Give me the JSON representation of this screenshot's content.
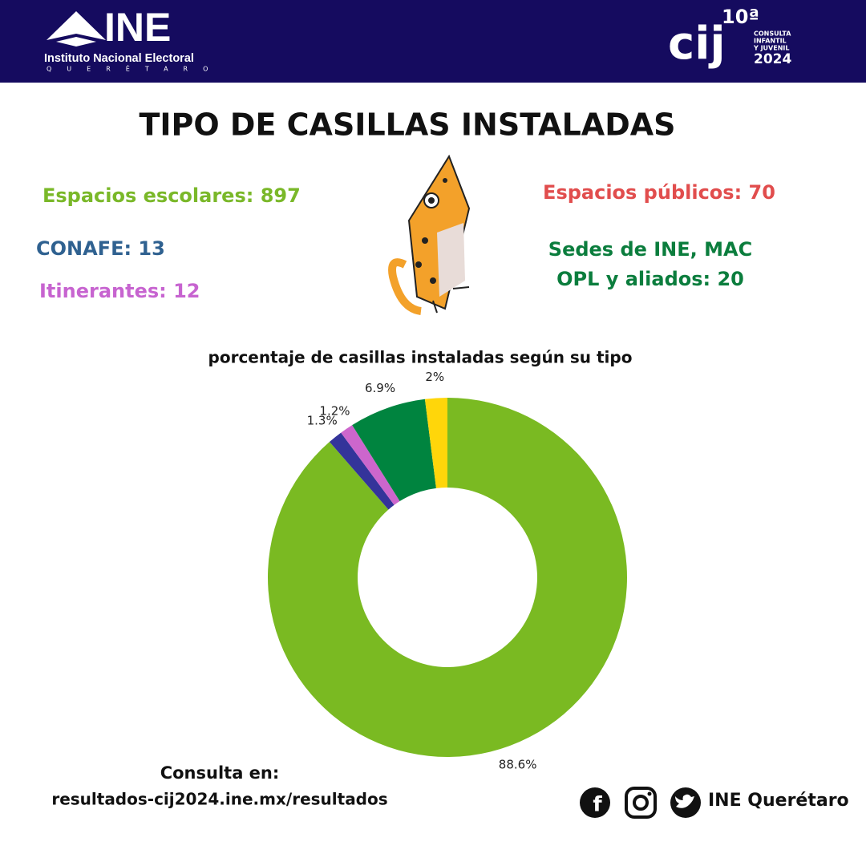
{
  "header": {
    "logo": "INE",
    "institute": "Instituto Nacional Electoral",
    "state": "QUERÉTARO",
    "cij_edition": "10ª",
    "cij": "cij",
    "cij_line1": "CONSULTA",
    "cij_line2": "INFANTIL",
    "cij_line3": "Y JUVENIL",
    "cij_year": "2024"
  },
  "title": "TIPO DE CASILLAS INSTALADAS",
  "stats": {
    "escolares": "Espacios  escolares: 897",
    "conafe": "CONAFE: 13",
    "itinerantes": "Itinerantes: 12",
    "publicos": "Espacios públicos: 70",
    "sedes_line1": "Sedes de INE, MAC",
    "sedes_line2": "OPL y aliados:  20"
  },
  "chart_data": {
    "type": "donut",
    "title": "porcentaje de casillas instaladas según su tipo",
    "values": [
      88.6,
      1.3,
      1.2,
      6.9,
      2
    ],
    "value_labels": [
      "88.6%",
      "1.3%",
      "1.2%",
      "6.9%",
      "2%"
    ],
    "colors": [
      "#7aba22",
      "#34349a",
      "#cc66cc",
      "#00843f",
      "#ffd60a"
    ]
  },
  "footer": {
    "consulta": "Consulta en:",
    "url": "resultados-cij2024.ine.mx/resultados",
    "social": "INE  Querétaro"
  }
}
